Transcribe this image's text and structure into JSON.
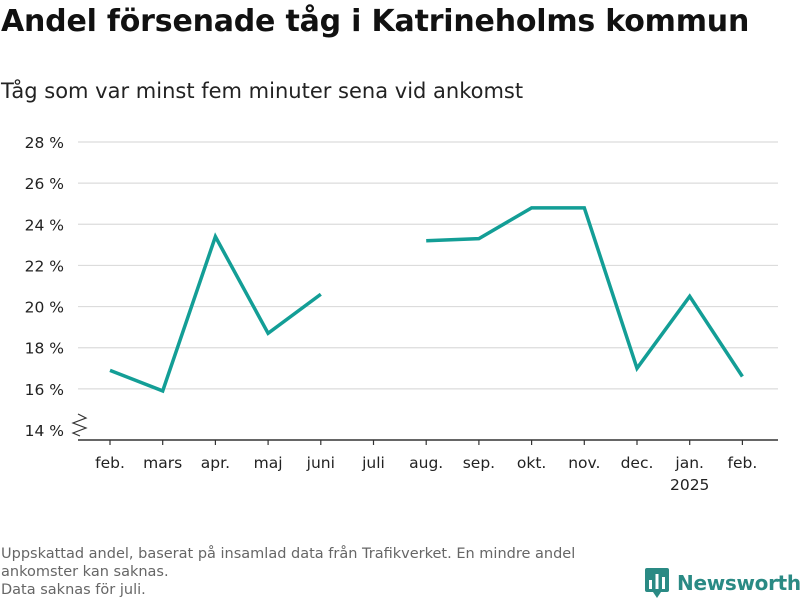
{
  "title": "Andel försenade tåg i Katrineholms kommun",
  "subtitle": "Tåg som var minst fem minuter sena vid ankomst",
  "footnote": {
    "line1": "Uppskattad andel, baserat på insamlad data från Trafikverket. En mindre andel",
    "line2": "ankomster kan saknas.",
    "line3": "Data saknas för juli."
  },
  "brand": {
    "name": "Newsworthy",
    "icon": "newsworthy-logo-icon",
    "color": "#2a8a84"
  },
  "chart_data": {
    "type": "line",
    "categories": [
      "feb.",
      "mars",
      "apr.",
      "maj",
      "juni",
      "juli",
      "aug.",
      "sep.",
      "okt.",
      "nov.",
      "dec.",
      "jan.",
      "feb."
    ],
    "year_label": {
      "category_index": 11,
      "text": "2025"
    },
    "series": [
      {
        "values": [
          16.9,
          15.9,
          23.4,
          18.7,
          20.6,
          null,
          23.2,
          23.3,
          24.8,
          24.8,
          17.0,
          20.5,
          16.6
        ],
        "color": "#139e96"
      }
    ],
    "y_ticks": [
      14,
      16,
      18,
      20,
      22,
      24,
      26,
      28
    ],
    "y_tick_labels": [
      "14 %",
      "16 %",
      "18 %",
      "20 %",
      "22 %",
      "24 %",
      "26 %",
      "28 %"
    ],
    "ylim": [
      14,
      28
    ],
    "y_axis_break": true,
    "grid": true,
    "xlabel": "",
    "ylabel": ""
  }
}
